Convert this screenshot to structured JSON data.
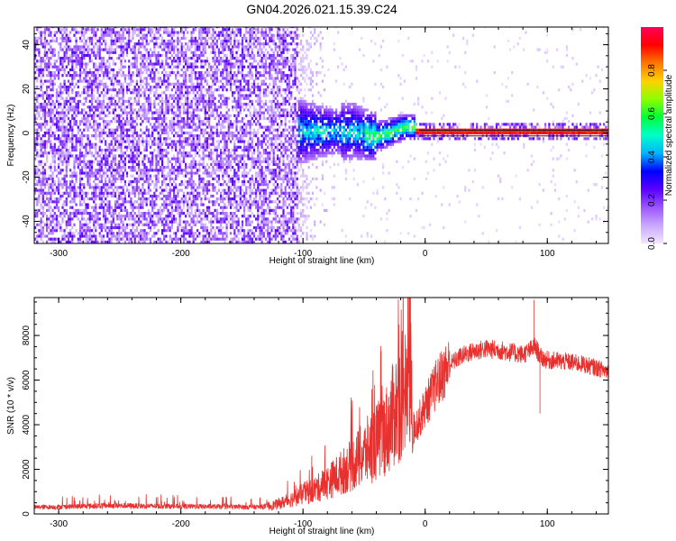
{
  "title": "GN04.2026.021.15.39.C24",
  "chart_data": [
    {
      "type": "heatmap",
      "xlabel": "Height of straight line (km)",
      "ylabel": "Frequency (Hz)",
      "xlim": [
        -320,
        150
      ],
      "ylim": [
        -50,
        48
      ],
      "xticks": [
        -300,
        -200,
        -100,
        0,
        100
      ],
      "yticks": [
        -40,
        -20,
        0,
        20,
        40
      ],
      "colorbar": {
        "label": "Normalized spectral amplitude",
        "range": [
          0,
          1
        ],
        "ticks": [
          0.0,
          0.2,
          0.4,
          0.6,
          0.8
        ],
        "tick_labels": [
          "0.0",
          "0.2",
          "0.4",
          "0.6",
          "0.8"
        ],
        "colormap": [
          "#f2e6ff",
          "#c9a8ff",
          "#9b55ff",
          "#5a00ff",
          "#0000ff",
          "#00b4ff",
          "#00ffc8",
          "#00ff3c",
          "#8cff00",
          "#ffd200",
          "#ff7800",
          "#ff0000",
          "#ff005a"
        ]
      },
      "description_regions": [
        {
          "x_range": [
            -320,
            -105
          ],
          "signal": "broadband noise, amplitude ~0.05-0.25"
        },
        {
          "x_range": [
            -105,
            -80
          ],
          "signal": "fading noise, amplitude ~0.0-0.1"
        },
        {
          "x_range": [
            -105,
            -10
          ],
          "signal": "carrier emerging near 0 Hz, spread +-15 Hz, amplitude ~0.3-0.5"
        },
        {
          "x_range": [
            -10,
            150
          ],
          "signal": "narrow carrier at 0 Hz, amplitude ~0.9"
        }
      ]
    },
    {
      "type": "line",
      "xlabel": "Height of straight line (km)",
      "ylabel": "SNR (10 * v/v)",
      "xlim": [
        -320,
        150
      ],
      "ylim": [
        0,
        9700
      ],
      "xticks": [
        -300,
        -200,
        -100,
        0,
        100
      ],
      "yticks": [
        0,
        2000,
        4000,
        6000,
        8000
      ],
      "series": [
        {
          "name": "SNR",
          "color": "#e8312e",
          "x": [
            -320,
            -300,
            -280,
            -260,
            -240,
            -220,
            -200,
            -180,
            -160,
            -140,
            -130,
            -120,
            -110,
            -100,
            -90,
            -80,
            -70,
            -60,
            -50,
            -40,
            -30,
            -25,
            -20,
            -15,
            -12,
            -10,
            -5,
            0,
            10,
            20,
            30,
            40,
            50,
            60,
            70,
            80,
            85,
            90,
            95,
            100,
            110,
            120,
            130,
            140,
            150
          ],
          "values": [
            300,
            320,
            340,
            380,
            360,
            350,
            340,
            330,
            320,
            310,
            330,
            450,
            650,
            900,
            1100,
            1400,
            1800,
            2200,
            2700,
            3200,
            3900,
            4600,
            5200,
            5600,
            6000,
            3800,
            4200,
            4800,
            5900,
            6700,
            7100,
            7300,
            7400,
            7350,
            7250,
            7150,
            7300,
            7500,
            7000,
            6900,
            6850,
            6800,
            6700,
            6550,
            6400
          ]
        }
      ],
      "spikes": [
        {
          "x": -12,
          "value": 9700
        },
        {
          "x": 89,
          "value": 9600
        },
        {
          "x": 94,
          "value": 4500
        }
      ]
    }
  ]
}
